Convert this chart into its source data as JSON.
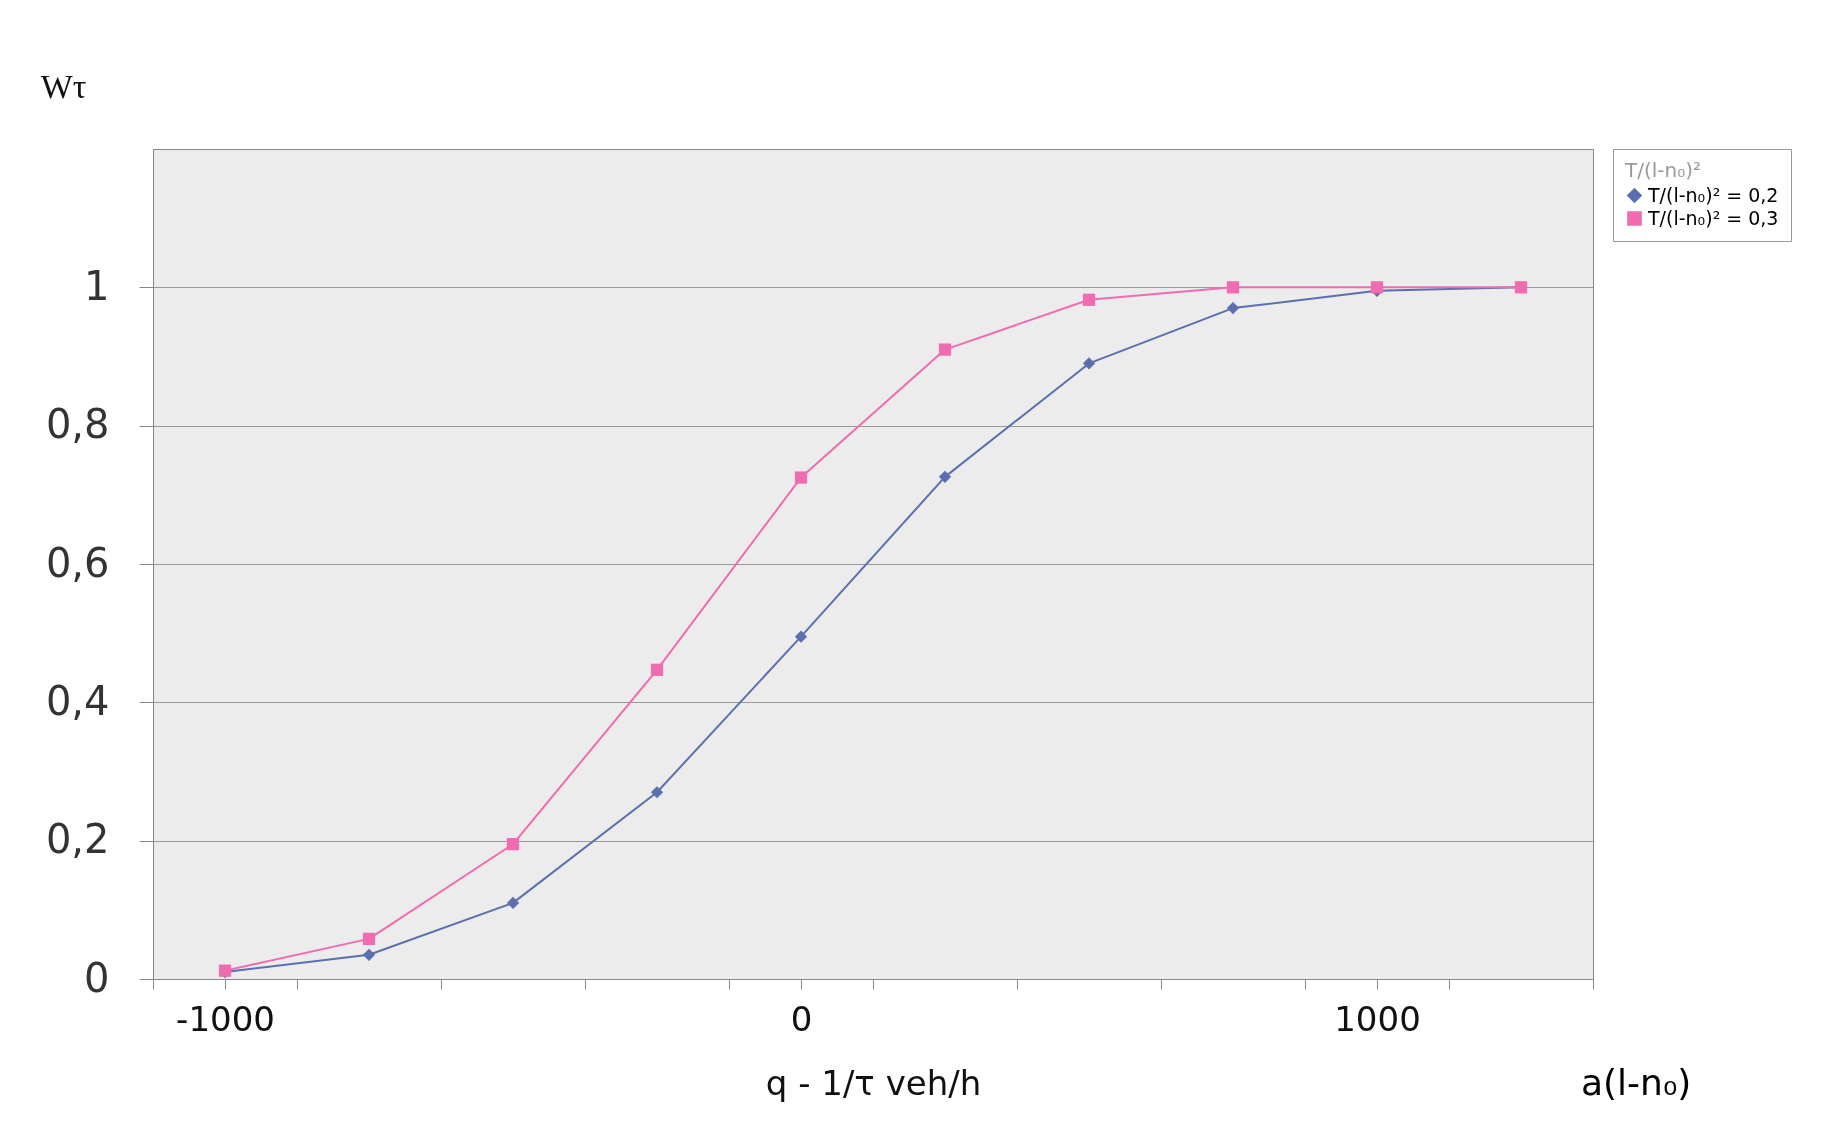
{
  "chart_data": {
    "type": "line",
    "xlabel": "q - 1/τ        veh/h",
    "ylabel": "Wτ",
    "legend_title": "T/(l-n₀)²",
    "annotations": [
      "a(l-n₀)"
    ],
    "x": [
      -1000,
      -750,
      -500,
      -250,
      0,
      250,
      500,
      750,
      1000,
      1250
    ],
    "series": [
      {
        "name": "T/(l-n₀)² = 0,2",
        "color": "#5a6fae",
        "marker": "diamond",
        "values": [
          0.01,
          0.035,
          0.11,
          0.27,
          0.495,
          0.726,
          0.89,
          0.97,
          0.995,
          1.0
        ]
      },
      {
        "name": "T/(l-n₀)² = 0,3",
        "color": "#f06bb0",
        "marker": "square",
        "values": [
          0.012,
          0.058,
          0.195,
          0.447,
          0.725,
          0.91,
          0.982,
          1.0,
          1.0,
          1.0
        ]
      }
    ],
    "xlim": [
      -1125,
      1375
    ],
    "xticks": [
      {
        "value": -1125,
        "label": null
      },
      -1000,
      {
        "value": -875,
        "label": null
      },
      {
        "value": -625,
        "label": null
      },
      {
        "value": -375,
        "label": null
      },
      {
        "value": -125,
        "label": null
      },
      0,
      {
        "value": 125,
        "label": null
      },
      {
        "value": 375,
        "label": null
      },
      {
        "value": 625,
        "label": null
      },
      {
        "value": 875,
        "label": null
      },
      1000,
      {
        "value": 1125,
        "label": null
      },
      {
        "value": 1375,
        "label": null
      }
    ],
    "ylim": [
      0,
      1.2
    ],
    "yticks": [
      0,
      {
        "value": 0.2,
        "label": "0,2"
      },
      {
        "value": 0.4,
        "label": "0,4"
      },
      {
        "value": 0.6,
        "label": "0,6"
      },
      {
        "value": 0.8,
        "label": "0,8"
      },
      1
    ],
    "grid": "y",
    "legend": "right"
  }
}
